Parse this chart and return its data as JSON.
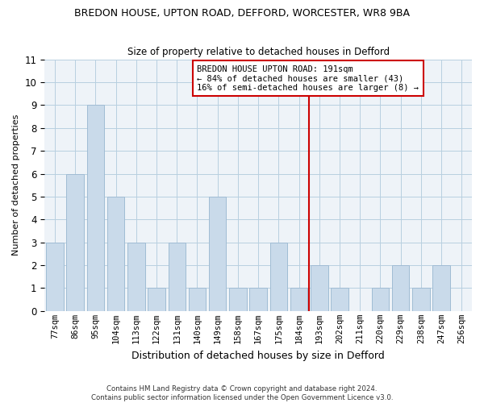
{
  "title": "BREDON HOUSE, UPTON ROAD, DEFFORD, WORCESTER, WR8 9BA",
  "subtitle": "Size of property relative to detached houses in Defford",
  "xlabel": "Distribution of detached houses by size in Defford",
  "ylabel": "Number of detached properties",
  "categories": [
    "77sqm",
    "86sqm",
    "95sqm",
    "104sqm",
    "113sqm",
    "122sqm",
    "131sqm",
    "140sqm",
    "149sqm",
    "158sqm",
    "167sqm",
    "175sqm",
    "184sqm",
    "193sqm",
    "202sqm",
    "211sqm",
    "220sqm",
    "229sqm",
    "238sqm",
    "247sqm",
    "256sqm"
  ],
  "values": [
    3,
    6,
    9,
    5,
    3,
    1,
    3,
    1,
    5,
    1,
    1,
    3,
    1,
    2,
    1,
    0,
    1,
    2,
    1,
    2,
    0
  ],
  "bar_color": "#c9daea",
  "bar_edgecolor": "#a0bcd4",
  "highlight_index": 13,
  "highlight_color": "#cc0000",
  "ylim": [
    0,
    11
  ],
  "yticks": [
    0,
    1,
    2,
    3,
    4,
    5,
    6,
    7,
    8,
    9,
    10,
    11
  ],
  "annotation_text": "BREDON HOUSE UPTON ROAD: 191sqm\n← 84% of detached houses are smaller (43)\n16% of semi-detached houses are larger (8) →",
  "footer": "Contains HM Land Registry data © Crown copyright and database right 2024.\nContains public sector information licensed under the Open Government Licence v3.0.",
  "bg_color": "#eef3f8"
}
